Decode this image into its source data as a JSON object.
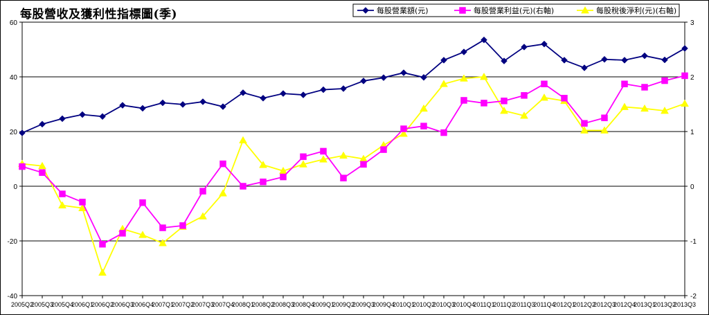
{
  "chart_data": {
    "type": "line",
    "title": "每股營收及獲利性指標圖(季)",
    "categories": [
      "2005Q2",
      "2005Q3",
      "2005Q4",
      "2006Q1",
      "2006Q2",
      "2006Q3",
      "2006Q4",
      "2007Q1",
      "2007Q2",
      "2007Q3",
      "2007Q4",
      "2008Q1",
      "2008Q2",
      "2008Q3",
      "2008Q4",
      "2009Q1",
      "2009Q2",
      "2009Q3",
      "2009Q4",
      "2010Q1",
      "2010Q2",
      "2010Q3",
      "2010Q4",
      "2011Q1",
      "2011Q2",
      "2011Q3",
      "2011Q4",
      "2012Q1",
      "2012Q2",
      "2012Q3",
      "2012Q4",
      "2013Q1",
      "2013Q2",
      "2013Q3"
    ],
    "y_left": {
      "min": -40,
      "max": 60,
      "ticks": [
        "60",
        "40",
        "20",
        "0",
        "-20",
        "-40"
      ]
    },
    "y_right": {
      "min": -2,
      "max": 3,
      "ticks": [
        "3",
        "2",
        "1",
        "0",
        "-1",
        "-2"
      ]
    },
    "gridlines": [
      40,
      20,
      0,
      -20
    ],
    "legend_position": "top-right",
    "series": [
      {
        "name": "每股營業額(元)",
        "axis": "left",
        "color": "#000080",
        "marker": "diamond",
        "values": [
          19.5,
          22.7,
          24.7,
          26.2,
          25.5,
          29.6,
          28.5,
          30.5,
          29.9,
          30.9,
          29.1,
          34.2,
          32.2,
          33.9,
          33.4,
          35.3,
          35.7,
          38.5,
          39.7,
          41.5,
          39.8,
          46.1,
          49.1,
          53.5,
          45.8,
          50.9,
          52.0,
          46.1,
          43.3,
          46.4,
          46.1,
          47.7,
          46.2,
          50.4
        ]
      },
      {
        "name": "每股營業利益(元)(右軸)",
        "axis": "right",
        "color": "#ff00ff",
        "marker": "square",
        "values": [
          0.36,
          0.25,
          -0.14,
          -0.29,
          -1.06,
          -0.86,
          -0.3,
          -0.76,
          -0.72,
          -0.09,
          0.41,
          0.0,
          0.08,
          0.17,
          0.54,
          0.64,
          0.15,
          0.4,
          0.67,
          1.05,
          1.1,
          0.98,
          1.57,
          1.52,
          1.56,
          1.66,
          1.87,
          1.61,
          1.15,
          1.25,
          1.87,
          1.81,
          1.93,
          2.02
        ]
      },
      {
        "name": "每股稅後淨利(元)(右軸)",
        "axis": "right",
        "color": "#ffff00",
        "marker": "triangle",
        "values": [
          0.41,
          0.37,
          -0.35,
          -0.4,
          -1.58,
          -0.78,
          -0.89,
          -1.04,
          -0.74,
          -0.55,
          -0.13,
          0.84,
          0.39,
          0.28,
          0.4,
          0.49,
          0.56,
          0.5,
          0.75,
          0.96,
          1.42,
          1.87,
          1.97,
          2.0,
          1.38,
          1.29,
          1.62,
          1.56,
          1.02,
          1.02,
          1.45,
          1.42,
          1.38,
          1.51
        ]
      }
    ]
  }
}
